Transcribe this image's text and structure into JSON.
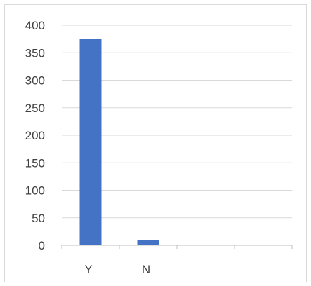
{
  "chart_data": {
    "type": "bar",
    "title": "",
    "xlabel": "",
    "ylabel": "",
    "categories": [
      "Y",
      "N",
      "",
      ""
    ],
    "series": [
      {
        "values": [
          375,
          10,
          null,
          null
        ]
      }
    ],
    "ylim": [
      0,
      400
    ],
    "yticks": [
      "0",
      "50",
      "100",
      "150",
      "200",
      "250",
      "300",
      "350",
      "400"
    ],
    "grid": true,
    "legend": "none",
    "colors": {
      "bar": "#4472C4",
      "grid": "#d9d9d9",
      "axis": "#bfbfbf",
      "text": "#404040",
      "frame": "#d9d9d9"
    }
  }
}
